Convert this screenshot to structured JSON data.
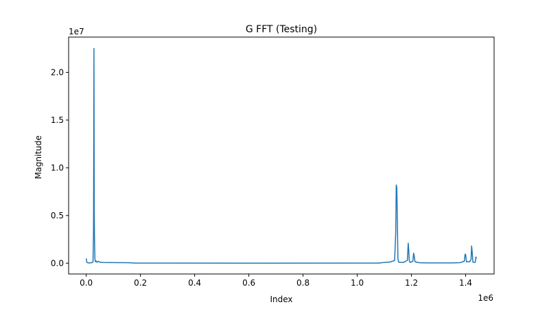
{
  "chart_data": {
    "type": "line",
    "title": "G FFT (Testing)",
    "xlabel": "Index",
    "ylabel": "Magnitude",
    "x_offset_label": "1e6",
    "y_offset_label": "1e7",
    "xlim": [
      -65000,
      1505000
    ],
    "ylim": [
      -1130000,
      23700000
    ],
    "x_ticks": [
      0,
      200000,
      400000,
      600000,
      800000,
      1000000,
      1200000,
      1400000
    ],
    "x_tick_labels": [
      "0.0",
      "0.2",
      "0.4",
      "0.6",
      "0.8",
      "1.0",
      "1.2",
      "1.4"
    ],
    "y_ticks": [
      0,
      5000000,
      10000000,
      15000000,
      20000000
    ],
    "y_tick_labels": [
      "0.0",
      "0.5",
      "1.0",
      "1.5",
      "2.0"
    ],
    "grid": false,
    "line_color": "#1f77b4",
    "series": [
      {
        "x": [
          0,
          2000,
          5000,
          10000,
          20000,
          25000,
          27000,
          28500,
          29500,
          30500,
          32000,
          34000,
          36000,
          40000,
          45000,
          50000,
          60000,
          80000,
          100000,
          120000,
          140000,
          160000,
          170000,
          175000,
          600000,
          1080000,
          1100000,
          1120000,
          1130000,
          1138000,
          1142000,
          1144000,
          1146000,
          1148000,
          1150000,
          1153000,
          1170000,
          1185000,
          1188000,
          1190000,
          1192000,
          1195000,
          1205000,
          1208000,
          1210000,
          1213000,
          1230000,
          1260000,
          1350000,
          1380000,
          1395000,
          1398000,
          1400000,
          1403000,
          1415000,
          1420000,
          1422000,
          1424000,
          1427000,
          1435000,
          1438000,
          1440000
        ],
        "y": [
          500000,
          100000,
          50000,
          30000,
          50000,
          150000,
          3700000,
          22500000,
          5700000,
          2600000,
          400000,
          150000,
          250000,
          100000,
          200000,
          100000,
          80000,
          70000,
          70000,
          60000,
          60000,
          50000,
          30000,
          10000,
          5000,
          10000,
          80000,
          120000,
          200000,
          300000,
          3200000,
          8200000,
          7900000,
          4500000,
          500000,
          100000,
          80000,
          300000,
          2100000,
          1400000,
          300000,
          80000,
          200000,
          1050000,
          800000,
          150000,
          50000,
          30000,
          30000,
          60000,
          200000,
          950000,
          900000,
          150000,
          150000,
          400000,
          1800000,
          1200000,
          100000,
          80000,
          650000,
          500000
        ]
      }
    ]
  }
}
